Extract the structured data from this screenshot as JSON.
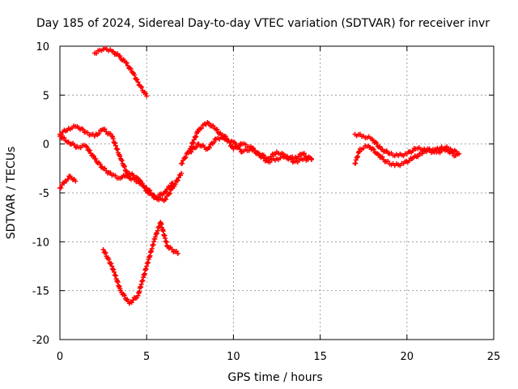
{
  "chart_data": {
    "type": "scatter",
    "title": "Day 185 of 2024, Sidereal Day-to-day VTEC variation (SDTVAR) for receiver invr",
    "xlabel": "GPS time / hours",
    "ylabel": "SDTVAR / TECUs",
    "xlim": [
      0,
      25
    ],
    "ylim": [
      -20,
      10
    ],
    "xticks": [
      "0",
      "5",
      "10",
      "15",
      "20",
      "25"
    ],
    "yticks": [
      "-20",
      "-15",
      "-10",
      "-5",
      "0",
      "5",
      "10"
    ],
    "grid": true,
    "marker": "+",
    "color": "#ff0000",
    "series": [
      {
        "name": "arc-1",
        "x": [
          2.0,
          2.3,
          2.6,
          3.0,
          3.4,
          3.8,
          4.2,
          4.6,
          5.0
        ],
        "y": [
          9.3,
          9.6,
          9.8,
          9.5,
          9.0,
          8.3,
          7.3,
          6.0,
          4.9
        ]
      },
      {
        "name": "arc-2",
        "x": [
          0.0,
          0.5,
          1.0,
          1.5,
          2.0,
          2.5,
          3.0,
          3.5,
          4.0,
          4.5,
          5.0,
          5.5,
          6.0,
          6.5,
          7.0
        ],
        "y": [
          1.0,
          1.6,
          1.8,
          1.2,
          0.8,
          1.5,
          0.8,
          -1.5,
          -3.5,
          -3.8,
          -4.5,
          -5.5,
          -5.8,
          -4.5,
          -3.0
        ]
      },
      {
        "name": "arc-3",
        "x": [
          0.0,
          0.5,
          1.0,
          1.5,
          2.0,
          2.5,
          3.0,
          3.5,
          4.0,
          4.5,
          5.0,
          5.5,
          6.0,
          6.5
        ],
        "y": [
          0.8,
          0.2,
          -0.3,
          -0.2,
          -1.5,
          -2.5,
          -3.2,
          -3.5,
          -3.0,
          -3.5,
          -4.8,
          -5.5,
          -5.0,
          -4.0
        ]
      },
      {
        "name": "arc-4",
        "x": [
          0.0,
          0.3,
          0.6,
          0.9
        ],
        "y": [
          -4.5,
          -3.8,
          -3.3,
          -3.8
        ]
      },
      {
        "name": "arc-5",
        "x": [
          2.5,
          3.0,
          3.5,
          4.0,
          4.5,
          5.0,
          5.5,
          5.8,
          6.2,
          6.8
        ],
        "y": [
          -10.8,
          -12.5,
          -15.0,
          -16.3,
          -15.5,
          -12.5,
          -9.5,
          -8.0,
          -10.5,
          -11.2
        ]
      },
      {
        "name": "arc-6",
        "x": [
          7.0,
          7.5,
          8.0,
          8.5,
          9.0,
          9.5,
          10.0,
          10.5,
          11.0,
          11.5,
          12.0,
          12.5,
          13.0,
          13.5,
          14.0,
          14.5
        ],
        "y": [
          -2.0,
          -0.5,
          1.5,
          2.2,
          1.5,
          0.5,
          0.2,
          -0.8,
          -0.5,
          -1.0,
          -1.5,
          -0.8,
          -1.2,
          -1.5,
          -1.0,
          -1.6
        ]
      },
      {
        "name": "arc-7",
        "x": [
          7.5,
          8.0,
          8.5,
          9.0,
          9.5,
          10.0,
          10.5,
          11.0,
          11.5,
          12.0,
          12.5,
          13.0,
          13.5,
          14.0,
          14.5
        ],
        "y": [
          -0.8,
          0.0,
          -0.5,
          0.5,
          0.8,
          -0.5,
          0.0,
          -0.3,
          -1.2,
          -1.8,
          -1.5,
          -1.3,
          -1.8,
          -1.6,
          -1.5
        ]
      },
      {
        "name": "arc-8",
        "x": [
          17.0,
          17.5,
          18.0,
          18.5,
          19.0,
          19.5,
          20.0,
          20.5,
          21.0,
          21.5,
          22.0,
          22.5,
          23.0
        ],
        "y": [
          1.0,
          0.8,
          0.5,
          -0.5,
          -1.0,
          -1.2,
          -1.0,
          -0.5,
          -0.5,
          -0.8,
          -0.3,
          -0.5,
          -1.0
        ]
      },
      {
        "name": "arc-9",
        "x": [
          17.0,
          17.3,
          17.8,
          18.3,
          18.8,
          19.3,
          19.8,
          20.3,
          20.8,
          21.3,
          21.8,
          22.3,
          22.8
        ],
        "y": [
          -2.0,
          -0.5,
          -0.2,
          -1.0,
          -1.8,
          -2.2,
          -2.0,
          -1.5,
          -1.0,
          -0.5,
          -0.8,
          -0.6,
          -1.2
        ]
      }
    ]
  }
}
